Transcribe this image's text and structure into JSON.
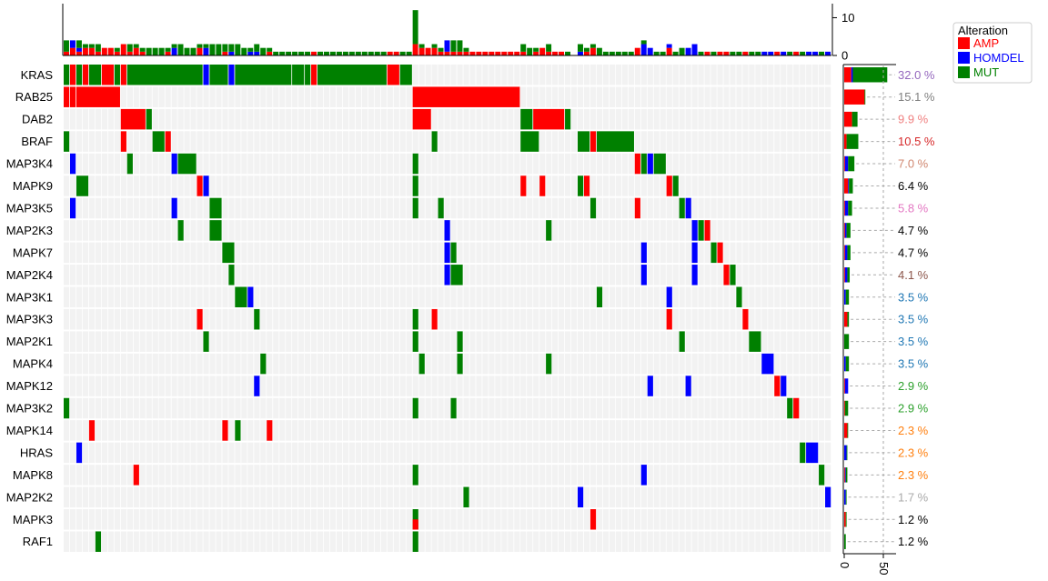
{
  "chart_data": {
    "type": "heatmap",
    "title": "",
    "legend": {
      "title": "Alteration",
      "position": "top-right",
      "items": [
        {
          "label": "AMP",
          "color": "#ff0000"
        },
        {
          "label": "HOMDEL",
          "color": "#0000ff"
        },
        {
          "label": "MUT",
          "color": "#008000"
        }
      ]
    },
    "top_axis": {
      "ticks": [
        "0",
        "10"
      ],
      "range": [
        0,
        13
      ]
    },
    "right_axis": {
      "ticks": [
        "0",
        "50"
      ],
      "range": [
        0,
        70
      ]
    },
    "n_samples": 121,
    "genes": [
      "KRAS",
      "RAB25",
      "DAB2",
      "BRAF",
      "MAP3K4",
      "MAPK9",
      "MAP3K5",
      "MAP2K3",
      "MAPK7",
      "MAP2K4",
      "MAP3K1",
      "MAP3K3",
      "MAP2K1",
      "MAPK4",
      "MAPK12",
      "MAP3K2",
      "MAPK14",
      "HRAS",
      "MAPK8",
      "MAP2K2",
      "MAPK3",
      "RAF1"
    ],
    "percent_labels": [
      "32.0 %",
      "15.1 %",
      "9.9 %",
      "10.5 %",
      "7.0 %",
      "6.4 %",
      "5.8 %",
      "4.7 %",
      "4.7 %",
      "4.1 %",
      "3.5 %",
      "3.5 %",
      "3.5 %",
      "3.5 %",
      "2.9 %",
      "2.9 %",
      "2.3 %",
      "2.3 %",
      "2.3 %",
      "1.7 %",
      "1.2 %",
      "1.2 %"
    ],
    "percent_colors": [
      "#9467bd",
      "#7f7f7f",
      "#f08080",
      "#d62728",
      "#d08770",
      "#000000",
      "#e377c2",
      "#000000",
      "#000000",
      "#8c564b",
      "#1f77b4",
      "#1f77b4",
      "#1f77b4",
      "#1f77b4",
      "#2ca02c",
      "#2ca02c",
      "#ff7f0e",
      "#ff7f0e",
      "#ff7f0e",
      "#aaaaaa",
      "#000000",
      "#000000"
    ],
    "gene_counts": [
      {
        "AMP": 9,
        "HOMDEL": 2,
        "MUT": 44
      },
      {
        "AMP": 26,
        "HOMDEL": 0,
        "MUT": 1
      },
      {
        "AMP": 10,
        "HOMDEL": 0,
        "MUT": 7
      },
      {
        "AMP": 3,
        "HOMDEL": 0,
        "MUT": 15
      },
      {
        "AMP": 1,
        "HOMDEL": 4,
        "MUT": 8
      },
      {
        "AMP": 5,
        "HOMDEL": 1,
        "MUT": 5
      },
      {
        "AMP": 1,
        "HOMDEL": 4,
        "MUT": 5
      },
      {
        "AMP": 1,
        "HOMDEL": 2,
        "MUT": 5
      },
      {
        "AMP": 1,
        "HOMDEL": 3,
        "MUT": 4
      },
      {
        "AMP": 1,
        "HOMDEL": 3,
        "MUT": 3
      },
      {
        "AMP": 0,
        "HOMDEL": 2,
        "MUT": 4
      },
      {
        "AMP": 4,
        "HOMDEL": 0,
        "MUT": 2
      },
      {
        "AMP": 0,
        "HOMDEL": 0,
        "MUT": 6
      },
      {
        "AMP": 0,
        "HOMDEL": 2,
        "MUT": 4
      },
      {
        "AMP": 1,
        "HOMDEL": 4,
        "MUT": 0
      },
      {
        "AMP": 1,
        "HOMDEL": 0,
        "MUT": 4
      },
      {
        "AMP": 4,
        "HOMDEL": 0,
        "MUT": 1
      },
      {
        "AMP": 0,
        "HOMDEL": 3,
        "MUT": 1
      },
      {
        "AMP": 1,
        "HOMDEL": 1,
        "MUT": 2
      },
      {
        "AMP": 0,
        "HOMDEL": 2,
        "MUT": 1
      },
      {
        "AMP": 2,
        "HOMDEL": 0,
        "MUT": 1
      },
      {
        "AMP": 0,
        "HOMDEL": 0,
        "MUT": 2
      }
    ],
    "alterations": {
      "KRAS": [
        {
          "s": [
            0,
            0
          ],
          "t": "MUT"
        },
        {
          "s": [
            1,
            1
          ],
          "t": "AMP"
        },
        {
          "s": [
            2,
            2
          ],
          "t": "MUT"
        },
        {
          "s": [
            3,
            3
          ],
          "t": "AMP"
        },
        {
          "s": [
            4,
            5
          ],
          "t": "MUT"
        },
        {
          "s": [
            6,
            7
          ],
          "t": "AMP"
        },
        {
          "s": [
            8,
            8
          ],
          "t": "MUT"
        },
        {
          "s": [
            9,
            9
          ],
          "t": "AMP"
        },
        {
          "s": [
            10,
            21
          ],
          "t": "MUT"
        },
        {
          "s": [
            22,
            22
          ],
          "t": "HOMDEL"
        },
        {
          "s": [
            23,
            25
          ],
          "t": "MUT"
        },
        {
          "s": [
            26,
            26
          ],
          "t": "HOMDEL"
        },
        {
          "s": [
            27,
            35
          ],
          "t": "MUT"
        },
        {
          "s": [
            36,
            37
          ],
          "t": "MUT"
        },
        {
          "s": [
            38,
            38
          ],
          "t": "MUT"
        },
        {
          "s": [
            39,
            39
          ],
          "t": "AMP"
        },
        {
          "s": [
            40,
            50
          ],
          "t": "MUT"
        },
        {
          "s": [
            51,
            52
          ],
          "t": "AMP"
        },
        {
          "s": [
            53,
            54
          ],
          "t": "MUT"
        }
      ],
      "RAB25": [
        {
          "s": [
            0,
            0
          ],
          "t": "AMP"
        },
        {
          "s": [
            1,
            1
          ],
          "t": "AMP"
        },
        {
          "s": [
            2,
            8
          ],
          "t": "AMP"
        },
        {
          "s": [
            55,
            71
          ],
          "t": "AMP"
        }
      ],
      "DAB2": [
        {
          "s": [
            9,
            12
          ],
          "t": "AMP"
        },
        {
          "s": [
            13,
            13
          ],
          "t": "MUT"
        },
        {
          "s": [
            55,
            57
          ],
          "t": "AMP"
        },
        {
          "s": [
            72,
            73
          ],
          "t": "MUT"
        },
        {
          "s": [
            74,
            78
          ],
          "t": "AMP"
        },
        {
          "s": [
            79,
            79
          ],
          "t": "MUT"
        }
      ],
      "BRAF": [
        {
          "s": [
            0,
            0
          ],
          "t": "MUT"
        },
        {
          "s": [
            9,
            9
          ],
          "t": "AMP"
        },
        {
          "s": [
            14,
            15
          ],
          "t": "MUT"
        },
        {
          "s": [
            16,
            16
          ],
          "t": "AMP"
        },
        {
          "s": [
            58,
            58
          ],
          "t": "MUT"
        },
        {
          "s": [
            72,
            74
          ],
          "t": "MUT"
        },
        {
          "s": [
            81,
            82
          ],
          "t": "MUT"
        },
        {
          "s": [
            83,
            83
          ],
          "t": "AMP"
        },
        {
          "s": [
            84,
            89
          ],
          "t": "MUT"
        }
      ],
      "MAP3K4": [
        {
          "s": [
            1,
            1
          ],
          "t": "HOMDEL"
        },
        {
          "s": [
            10,
            10
          ],
          "t": "MUT"
        },
        {
          "s": [
            17,
            17
          ],
          "t": "HOMDEL"
        },
        {
          "s": [
            18,
            20
          ],
          "t": "MUT"
        },
        {
          "s": [
            55,
            55
          ],
          "t": "MUT"
        },
        {
          "s": [
            90,
            90
          ],
          "t": "AMP"
        },
        {
          "s": [
            91,
            91
          ],
          "t": "MUT"
        },
        {
          "s": [
            92,
            92
          ],
          "t": "HOMDEL"
        },
        {
          "s": [
            93,
            94
          ],
          "t": "MUT"
        }
      ],
      "MAPK9": [
        {
          "s": [
            2,
            3
          ],
          "t": "MUT"
        },
        {
          "s": [
            21,
            21
          ],
          "t": "AMP"
        },
        {
          "s": [
            22,
            22
          ],
          "t": "HOMDEL"
        },
        {
          "s": [
            55,
            55
          ],
          "t": "MUT"
        },
        {
          "s": [
            72,
            72
          ],
          "t": "AMP"
        },
        {
          "s": [
            75,
            75
          ],
          "t": "AMP"
        },
        {
          "s": [
            81,
            81
          ],
          "t": "MUT"
        },
        {
          "s": [
            82,
            82
          ],
          "t": "AMP"
        },
        {
          "s": [
            95,
            95
          ],
          "t": "AMP"
        },
        {
          "s": [
            96,
            96
          ],
          "t": "MUT"
        }
      ],
      "MAP3K5": [
        {
          "s": [
            1,
            1
          ],
          "t": "HOMDEL"
        },
        {
          "s": [
            17,
            17
          ],
          "t": "HOMDEL"
        },
        {
          "s": [
            23,
            24
          ],
          "t": "MUT"
        },
        {
          "s": [
            55,
            55
          ],
          "t": "MUT"
        },
        {
          "s": [
            59,
            59
          ],
          "t": "MUT"
        },
        {
          "s": [
            83,
            83
          ],
          "t": "MUT"
        },
        {
          "s": [
            90,
            90
          ],
          "t": "AMP"
        },
        {
          "s": [
            97,
            97
          ],
          "t": "MUT"
        },
        {
          "s": [
            98,
            98
          ],
          "t": "HOMDEL"
        }
      ],
      "MAP2K3": [
        {
          "s": [
            18,
            18
          ],
          "t": "MUT"
        },
        {
          "s": [
            23,
            24
          ],
          "t": "MUT"
        },
        {
          "s": [
            60,
            60
          ],
          "t": "HOMDEL"
        },
        {
          "s": [
            76,
            76
          ],
          "t": "MUT"
        },
        {
          "s": [
            99,
            99
          ],
          "t": "HOMDEL"
        },
        {
          "s": [
            100,
            100
          ],
          "t": "MUT"
        },
        {
          "s": [
            101,
            101
          ],
          "t": "AMP"
        }
      ],
      "MAPK7": [
        {
          "s": [
            25,
            26
          ],
          "t": "MUT"
        },
        {
          "s": [
            60,
            60
          ],
          "t": "HOMDEL"
        },
        {
          "s": [
            61,
            61
          ],
          "t": "MUT"
        },
        {
          "s": [
            91,
            91
          ],
          "t": "HOMDEL"
        },
        {
          "s": [
            99,
            99
          ],
          "t": "HOMDEL"
        },
        {
          "s": [
            102,
            102
          ],
          "t": "MUT"
        },
        {
          "s": [
            103,
            103
          ],
          "t": "AMP"
        }
      ],
      "MAP2K4": [
        {
          "s": [
            26,
            26
          ],
          "t": "MUT"
        },
        {
          "s": [
            60,
            60
          ],
          "t": "HOMDEL"
        },
        {
          "s": [
            61,
            62
          ],
          "t": "MUT"
        },
        {
          "s": [
            91,
            91
          ],
          "t": "HOMDEL"
        },
        {
          "s": [
            99,
            99
          ],
          "t": "HOMDEL"
        },
        {
          "s": [
            104,
            104
          ],
          "t": "AMP"
        },
        {
          "s": [
            105,
            105
          ],
          "t": "MUT"
        }
      ],
      "MAP3K1": [
        {
          "s": [
            27,
            28
          ],
          "t": "MUT"
        },
        {
          "s": [
            29,
            29
          ],
          "t": "HOMDEL"
        },
        {
          "s": [
            84,
            84
          ],
          "t": "MUT"
        },
        {
          "s": [
            95,
            95
          ],
          "t": "HOMDEL"
        },
        {
          "s": [
            106,
            106
          ],
          "t": "MUT"
        }
      ],
      "MAP3K3": [
        {
          "s": [
            21,
            21
          ],
          "t": "AMP"
        },
        {
          "s": [
            30,
            30
          ],
          "t": "MUT"
        },
        {
          "s": [
            55,
            55
          ],
          "t": "MUT"
        },
        {
          "s": [
            58,
            58
          ],
          "t": "AMP"
        },
        {
          "s": [
            95,
            95
          ],
          "t": "AMP"
        },
        {
          "s": [
            107,
            107
          ],
          "t": "AMP"
        }
      ],
      "MAP2K1": [
        {
          "s": [
            22,
            22
          ],
          "t": "MUT"
        },
        {
          "s": [
            55,
            55
          ],
          "t": "MUT"
        },
        {
          "s": [
            62,
            62
          ],
          "t": "MUT"
        },
        {
          "s": [
            97,
            97
          ],
          "t": "MUT"
        },
        {
          "s": [
            108,
            109
          ],
          "t": "MUT"
        }
      ],
      "MAPK4": [
        {
          "s": [
            31,
            31
          ],
          "t": "MUT"
        },
        {
          "s": [
            56,
            56
          ],
          "t": "MUT"
        },
        {
          "s": [
            62,
            62
          ],
          "t": "MUT"
        },
        {
          "s": [
            76,
            76
          ],
          "t": "MUT"
        },
        {
          "s": [
            110,
            111
          ],
          "t": "HOMDEL"
        }
      ],
      "MAPK12": [
        {
          "s": [
            30,
            30
          ],
          "t": "HOMDEL"
        },
        {
          "s": [
            92,
            92
          ],
          "t": "HOMDEL"
        },
        {
          "s": [
            98,
            98
          ],
          "t": "HOMDEL"
        },
        {
          "s": [
            112,
            112
          ],
          "t": "AMP"
        },
        {
          "s": [
            113,
            113
          ],
          "t": "HOMDEL"
        }
      ],
      "MAP3K2": [
        {
          "s": [
            0,
            0
          ],
          "t": "MUT"
        },
        {
          "s": [
            55,
            55
          ],
          "t": "MUT"
        },
        {
          "s": [
            61,
            61
          ],
          "t": "MUT"
        },
        {
          "s": [
            114,
            114
          ],
          "t": "MUT"
        },
        {
          "s": [
            115,
            115
          ],
          "t": "AMP"
        }
      ],
      "MAPK14": [
        {
          "s": [
            4,
            4
          ],
          "t": "AMP"
        },
        {
          "s": [
            25,
            25
          ],
          "t": "AMP"
        },
        {
          "s": [
            27,
            27
          ],
          "t": "MUT"
        },
        {
          "s": [
            32,
            32
          ],
          "t": "AMP"
        }
      ],
      "HRAS": [
        {
          "s": [
            2,
            2
          ],
          "t": "HOMDEL"
        },
        {
          "s": [
            116,
            116
          ],
          "t": "MUT"
        },
        {
          "s": [
            117,
            118
          ],
          "t": "HOMDEL"
        }
      ],
      "MAPK8": [
        {
          "s": [
            11,
            11
          ],
          "t": "AMP"
        },
        {
          "s": [
            55,
            55
          ],
          "t": "MUT"
        },
        {
          "s": [
            91,
            91
          ],
          "t": "HOMDEL"
        },
        {
          "s": [
            119,
            119
          ],
          "t": "MUT"
        }
      ],
      "MAP2K2": [
        {
          "s": [
            63,
            63
          ],
          "t": "MUT"
        },
        {
          "s": [
            81,
            81
          ],
          "t": "HOMDEL"
        },
        {
          "s": [
            120,
            120
          ],
          "t": "HOMDEL"
        }
      ],
      "MAPK3": [
        {
          "s": [
            55,
            55
          ],
          "t": "MUT"
        },
        {
          "s": [
            55,
            55
          ],
          "t": "AMP",
          "half": "bottom"
        },
        {
          "s": [
            83,
            83
          ],
          "t": "AMP"
        }
      ],
      "RAF1": [
        {
          "s": [
            5,
            5
          ],
          "t": "MUT"
        },
        {
          "s": [
            55,
            55
          ],
          "t": "MUT"
        }
      ]
    }
  }
}
